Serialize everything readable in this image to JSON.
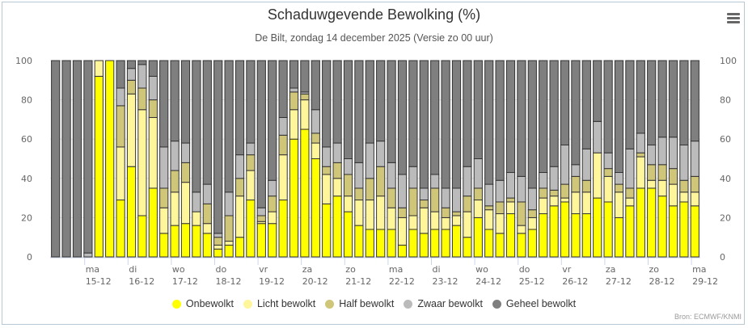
{
  "header": {
    "title": "Schaduwgevende Bewolking (%)",
    "subtitle": "De Bilt, zondag 14 december 2025 (Versie zo 00 uur)",
    "menu_icon": "hamburger-menu-icon"
  },
  "credits": "Bron: ECMWF/KNMI",
  "chart_data": {
    "type": "bar",
    "stacked": true,
    "title": "Schaduwgevende Bewolking (%)",
    "subtitle": "De Bilt, zondag 14 december 2025 (Versie zo 00 uur)",
    "xlabel": "",
    "ylabel": "",
    "ylim": [
      0,
      100
    ],
    "yticks": [
      "0",
      "20",
      "40",
      "60",
      "80",
      "100"
    ],
    "grid": true,
    "legend_position": "bottom",
    "bars_per_day": 4,
    "x_ticks": [
      {
        "day": "ma",
        "date": "15-12",
        "bar_index": 3
      },
      {
        "day": "di",
        "date": "16-12",
        "bar_index": 7
      },
      {
        "day": "wo",
        "date": "17-12",
        "bar_index": 11
      },
      {
        "day": "do",
        "date": "18-12",
        "bar_index": 15
      },
      {
        "day": "vr",
        "date": "19-12",
        "bar_index": 19
      },
      {
        "day": "za",
        "date": "20-12",
        "bar_index": 23
      },
      {
        "day": "zo",
        "date": "21-12",
        "bar_index": 27
      },
      {
        "day": "ma",
        "date": "22-12",
        "bar_index": 31
      },
      {
        "day": "di",
        "date": "23-12",
        "bar_index": 35
      },
      {
        "day": "wo",
        "date": "24-12",
        "bar_index": 39
      },
      {
        "day": "do",
        "date": "25-12",
        "bar_index": 43
      },
      {
        "day": "vr",
        "date": "26-12",
        "bar_index": 47
      },
      {
        "day": "za",
        "date": "27-12",
        "bar_index": 51
      },
      {
        "day": "zo",
        "date": "28-12",
        "bar_index": 55
      },
      {
        "day": "ma",
        "date": "29-12",
        "bar_index": 59
      }
    ],
    "series": [
      {
        "name": "Onbewolkt",
        "color": "#FFFF00",
        "values": [
          0,
          0,
          0,
          0,
          92,
          100,
          29,
          46,
          21,
          35,
          12,
          16,
          17,
          16,
          12,
          4,
          6,
          10,
          29,
          17,
          17,
          29,
          60,
          65,
          50,
          27,
          31,
          23,
          16,
          14,
          14,
          14,
          6,
          14,
          12,
          14,
          14,
          16,
          10,
          20,
          14,
          12,
          22,
          12,
          14,
          22,
          26,
          28,
          22,
          22,
          30,
          28,
          20,
          26,
          35,
          35,
          31,
          26,
          28,
          26
        ]
      },
      {
        "name": "Licht bewolkt",
        "color": "#FFF59A",
        "values": [
          0,
          0,
          0,
          0,
          8,
          0,
          27,
          37,
          54,
          36,
          13,
          17,
          21,
          7,
          5,
          2,
          2,
          21,
          15,
          1,
          6,
          23,
          15,
          15,
          8,
          15,
          9,
          8,
          13,
          15,
          17,
          11,
          14,
          7,
          13,
          9,
          6,
          5,
          13,
          9,
          10,
          10,
          6,
          4,
          6,
          8,
          5,
          2,
          11,
          11,
          23,
          13,
          13,
          4,
          16,
          4,
          8,
          11,
          5,
          7
        ]
      },
      {
        "name": "Half bewolkt",
        "color": "#CFC67A",
        "values": [
          0,
          0,
          0,
          0,
          0,
          0,
          21,
          7,
          11,
          9,
          10,
          11,
          10,
          0,
          10,
          4,
          13,
          9,
          8,
          3,
          8,
          10,
          9,
          3,
          5,
          4,
          8,
          11,
          6,
          11,
          15,
          10,
          5,
          14,
          4,
          12,
          5,
          2,
          8,
          6,
          2,
          6,
          2,
          12,
          4,
          5,
          3,
          7,
          8,
          6,
          0,
          4,
          4,
          5,
          2,
          8,
          8,
          8,
          6,
          8
        ]
      },
      {
        "name": "Zwaar bewolkt",
        "color": "#BBBBBB",
        "values": [
          0,
          0,
          0,
          2,
          0,
          0,
          9,
          6,
          12,
          12,
          21,
          15,
          10,
          10,
          10,
          2,
          12,
          12,
          6,
          4,
          8,
          9,
          2,
          1,
          12,
          10,
          10,
          8,
          13,
          18,
          13,
          13,
          17,
          11,
          6,
          7,
          10,
          12,
          15,
          15,
          11,
          11,
          13,
          13,
          11,
          8,
          12,
          20,
          6,
          16,
          16,
          8,
          6,
          20,
          10,
          10,
          14,
          16,
          18,
          18
        ]
      },
      {
        "name": "Geheel bewolkt",
        "color": "#7F7F7F",
        "values": [
          100,
          100,
          100,
          98,
          0,
          0,
          14,
          4,
          2,
          8,
          44,
          41,
          42,
          67,
          63,
          88,
          67,
          48,
          42,
          75,
          61,
          29,
          14,
          16,
          25,
          44,
          42,
          50,
          52,
          42,
          41,
          52,
          58,
          54,
          65,
          58,
          65,
          65,
          54,
          50,
          63,
          61,
          57,
          59,
          65,
          57,
          54,
          43,
          53,
          45,
          31,
          47,
          57,
          45,
          37,
          43,
          39,
          39,
          43,
          41
        ]
      }
    ]
  }
}
